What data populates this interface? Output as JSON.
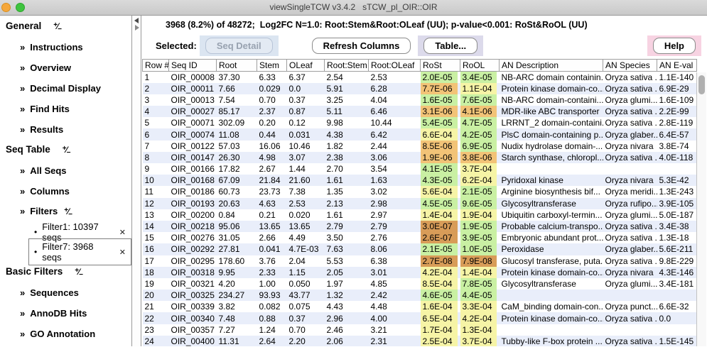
{
  "window": {
    "title": "viewSingleTCW v3.4.2   sTCW_pl_OIR::OIR"
  },
  "header": {
    "summary": "3968 (8.2%) of 48272;  Log2FC N=1.0: Root:Stem&Root:OLeaf (UU); p-value<0.001: RoSt&RoOL (UU)"
  },
  "toolbar": {
    "selected_label": "Selected:",
    "seq_detail_label": "Seq Detail",
    "refresh_columns_label": "Refresh Columns",
    "table_label": "Table...",
    "help_label": "Help"
  },
  "icons": {
    "chevron": "»",
    "bullet": "•",
    "close": "✕",
    "toggle_plus": "+",
    "toggle_slash": "⁄",
    "toggle_minus": "−"
  },
  "sidebar": {
    "entries": [
      {
        "type": "section",
        "label": "General",
        "toggle": true
      },
      {
        "type": "item",
        "label": "Instructions"
      },
      {
        "type": "item",
        "label": "Overview"
      },
      {
        "type": "item",
        "label": "Decimal Display"
      },
      {
        "type": "item",
        "label": "Find Hits"
      },
      {
        "type": "item",
        "label": "Results"
      },
      {
        "type": "section",
        "label": "Seq Table",
        "toggle": true
      },
      {
        "type": "item",
        "label": "All Seqs"
      },
      {
        "type": "item",
        "label": "Columns"
      },
      {
        "type": "item",
        "label": "Filters",
        "toggle": true
      },
      {
        "type": "filter",
        "label": "Filter1: 10397 seqs",
        "close": true
      },
      {
        "type": "filter",
        "label": "Filter7: 3968 seqs",
        "close": true,
        "selected": true
      },
      {
        "type": "section",
        "label": "Basic Filters",
        "toggle": true
      },
      {
        "type": "item",
        "label": "Sequences"
      },
      {
        "type": "item",
        "label": "AnnoDB Hits"
      },
      {
        "type": "item",
        "label": "GO Annotation"
      }
    ]
  },
  "colors": {
    "scale": {
      "green": "#c9f0a3",
      "yellow": "#f6f4a6",
      "orange": "#f2c377",
      "dark": "#d89c58"
    },
    "stripe": "#e9eefa",
    "seq_detail_highlight": "#dbe5f1",
    "table_highlight": "#dcdaeb",
    "help_highlight": "#f7d3e2"
  },
  "table": {
    "columns": [
      {
        "key": "rownum",
        "label": "Row #"
      },
      {
        "key": "seqid",
        "label": "Seq ID"
      },
      {
        "key": "root",
        "label": "Root"
      },
      {
        "key": "stem",
        "label": "Stem"
      },
      {
        "key": "oleaf",
        "label": "OLeaf"
      },
      {
        "key": "rootstem",
        "label": "Root:Stem"
      },
      {
        "key": "rootoleaf",
        "label": "Root:OLeaf"
      },
      {
        "key": "rost",
        "label": "RoSt"
      },
      {
        "key": "rool",
        "label": "RoOL"
      },
      {
        "key": "andescription",
        "label": "AN Description"
      },
      {
        "key": "anspecies",
        "label": "AN Species"
      },
      {
        "key": "aneval",
        "label": "AN E-val"
      }
    ],
    "rows": [
      {
        "cells": [
          "1",
          "OIR_00008",
          "37.30",
          "6.33",
          "6.37",
          "2.54",
          "2.53",
          "2.0E-05",
          "3.4E-05",
          "NB-ARC domain containin...",
          "Oryza sativa ...",
          "1.1E-140"
        ],
        "rost": "green",
        "rool": "green"
      },
      {
        "cells": [
          "2",
          "OIR_00011",
          "7.66",
          "0.029",
          "0.0",
          "5.91",
          "6.28",
          "7.7E-06",
          "1.1E-04",
          "Protein kinase domain-co...",
          "Oryza sativa ...",
          "6.9E-29"
        ],
        "rost": "orange",
        "rool": "yellow"
      },
      {
        "cells": [
          "3",
          "OIR_00013",
          "7.54",
          "0.70",
          "0.37",
          "3.25",
          "4.04",
          "1.6E-05",
          "7.6E-05",
          "NB-ARC domain-containi...",
          "Oryza glumi...",
          "1.6E-109"
        ],
        "rost": "green",
        "rool": "green"
      },
      {
        "cells": [
          "4",
          "OIR_00027",
          "85.17",
          "2.37",
          "0.87",
          "5.11",
          "6.46",
          "3.1E-06",
          "4.1E-06",
          "MDR-like ABC transporter",
          "Oryza sativa ...",
          "2.2E-99"
        ],
        "rost": "orange",
        "rool": "orange"
      },
      {
        "cells": [
          "5",
          "OIR_00071",
          "302.09",
          "0.20",
          "0.12",
          "9.98",
          "10.44",
          "5.4E-05",
          "4.7E-05",
          "LRRNT_2 domain-containi...",
          "Oryza sativa ...",
          "2.8E-119"
        ],
        "rost": "green",
        "rool": "green"
      },
      {
        "cells": [
          "6",
          "OIR_00074",
          "11.08",
          "0.44",
          "0.031",
          "4.38",
          "6.42",
          "6.6E-04",
          "4.2E-05",
          "PlsC domain-containing p...",
          "Oryza glaber...",
          "6.4E-57"
        ],
        "rost": "yellow",
        "rool": "green"
      },
      {
        "cells": [
          "7",
          "OIR_00122",
          "57.03",
          "16.06",
          "10.46",
          "1.82",
          "2.44",
          "8.5E-06",
          "6.9E-05",
          "Nudix hydrolase domain-...",
          "Oryza nivara",
          "3.8E-74"
        ],
        "rost": "orange",
        "rool": "green"
      },
      {
        "cells": [
          "8",
          "OIR_00147",
          "26.30",
          "4.98",
          "3.07",
          "2.38",
          "3.06",
          "1.9E-06",
          "3.8E-06",
          "Starch synthase, chloropl...",
          "Oryza sativa ...",
          "4.0E-118"
        ],
        "rost": "orange",
        "rool": "orange"
      },
      {
        "cells": [
          "9",
          "OIR_00166",
          "17.82",
          "2.67",
          "1.44",
          "2.70",
          "3.54",
          "4.1E-05",
          "3.7E-04",
          "",
          "",
          ""
        ],
        "rost": "green",
        "rool": "yellow"
      },
      {
        "cells": [
          "10",
          "OIR_00168",
          "67.09",
          "21.84",
          "21.60",
          "1.61",
          "1.63",
          "4.3E-05",
          "6.2E-04",
          "Pyridoxal kinase",
          "Oryza nivara",
          "5.3E-42"
        ],
        "rost": "green",
        "rool": "yellow"
      },
      {
        "cells": [
          "11",
          "OIR_00186",
          "60.73",
          "23.73",
          "7.38",
          "1.35",
          "3.02",
          "5.6E-04",
          "2.1E-05",
          "Arginine biosynthesis bif...",
          "Oryza meridi...",
          "1.3E-243"
        ],
        "rost": "yellow",
        "rool": "green"
      },
      {
        "cells": [
          "12",
          "OIR_00193",
          "20.63",
          "4.63",
          "2.53",
          "2.13",
          "2.98",
          "4.5E-05",
          "9.6E-05",
          "Glycosyltransferase",
          "Oryza rufipo...",
          "3.9E-105"
        ],
        "rost": "green",
        "rool": "green"
      },
      {
        "cells": [
          "13",
          "OIR_00200",
          "0.84",
          "0.21",
          "0.020",
          "1.61",
          "2.97",
          "1.4E-04",
          "1.9E-04",
          "Ubiquitin carboxyl-termin...",
          "Oryza glumi...",
          "5.0E-187"
        ],
        "rost": "yellow",
        "rool": "yellow"
      },
      {
        "cells": [
          "14",
          "OIR_00218",
          "95.06",
          "13.65",
          "13.65",
          "2.79",
          "2.79",
          "3.0E-07",
          "1.9E-05",
          "Probable calcium-transpo...",
          "Oryza sativa ...",
          "3.4E-38"
        ],
        "rost": "dark",
        "rool": "green"
      },
      {
        "cells": [
          "15",
          "OIR_00276",
          "31.05",
          "2.66",
          "4.49",
          "3.50",
          "2.76",
          "2.6E-07",
          "3.9E-05",
          "Embryonic abundant prot...",
          "Oryza sativa ...",
          "1.3E-18"
        ],
        "rost": "dark",
        "rool": "green"
      },
      {
        "cells": [
          "16",
          "OIR_00292",
          "27.81",
          "0.041",
          "4.7E-03",
          "7.63",
          "8.06",
          "2.1E-05",
          "1.0E-05",
          "Peroxidase",
          "Oryza glaber...",
          "5.6E-211"
        ],
        "rost": "green",
        "rool": "green"
      },
      {
        "cells": [
          "17",
          "OIR_00295",
          "178.60",
          "3.76",
          "2.04",
          "5.53",
          "6.38",
          "2.7E-08",
          "7.9E-08",
          "Glucosyl transferase, puta...",
          "Oryza sativa ...",
          "9.8E-229"
        ],
        "rost": "dark",
        "rool": "dark"
      },
      {
        "cells": [
          "18",
          "OIR_00318",
          "9.95",
          "2.33",
          "1.15",
          "2.05",
          "3.01",
          "4.2E-04",
          "1.4E-04",
          "Protein kinase domain-co...",
          "Oryza nivara",
          "4.3E-146"
        ],
        "rost": "yellow",
        "rool": "yellow"
      },
      {
        "cells": [
          "19",
          "OIR_00321",
          "4.20",
          "1.00",
          "0.050",
          "1.97",
          "4.85",
          "8.5E-04",
          "7.8E-05",
          "Glycosyltransferase",
          "Oryza glumi...",
          "3.4E-181"
        ],
        "rost": "yellow",
        "rool": "green"
      },
      {
        "cells": [
          "20",
          "OIR_00325",
          "234.27",
          "93.93",
          "43.77",
          "1.32",
          "2.42",
          "4.6E-05",
          "4.4E-05",
          "",
          "",
          ""
        ],
        "rost": "green",
        "rool": "green"
      },
      {
        "cells": [
          "21",
          "OIR_00339",
          "3.82",
          "0.082",
          "0.075",
          "4.43",
          "4.48",
          "1.6E-04",
          "3.3E-04",
          "CaM_binding domain-con...",
          "Oryza punct...",
          "6.6E-32"
        ],
        "rost": "yellow",
        "rool": "yellow"
      },
      {
        "cells": [
          "22",
          "OIR_00340",
          "7.48",
          "0.88",
          "0.37",
          "2.96",
          "4.00",
          "6.5E-04",
          "4.2E-04",
          "Protein kinase domain-co...",
          "Oryza sativa ...",
          "0.0"
        ],
        "rost": "yellow",
        "rool": "yellow"
      },
      {
        "cells": [
          "23",
          "OIR_00357",
          "7.27",
          "1.24",
          "0.70",
          "2.46",
          "3.21",
          "1.7E-04",
          "1.3E-04",
          "",
          "",
          ""
        ],
        "rost": "yellow",
        "rool": "yellow"
      },
      {
        "cells": [
          "24",
          "OIR_00400",
          "11.31",
          "2.64",
          "2.20",
          "2.06",
          "2.31",
          "2.5E-04",
          "3.7E-04",
          "Tubby-like F-box protein ...",
          "Oryza sativa ...",
          "1.5E-145"
        ],
        "rost": "yellow",
        "rool": "yellow"
      }
    ]
  }
}
